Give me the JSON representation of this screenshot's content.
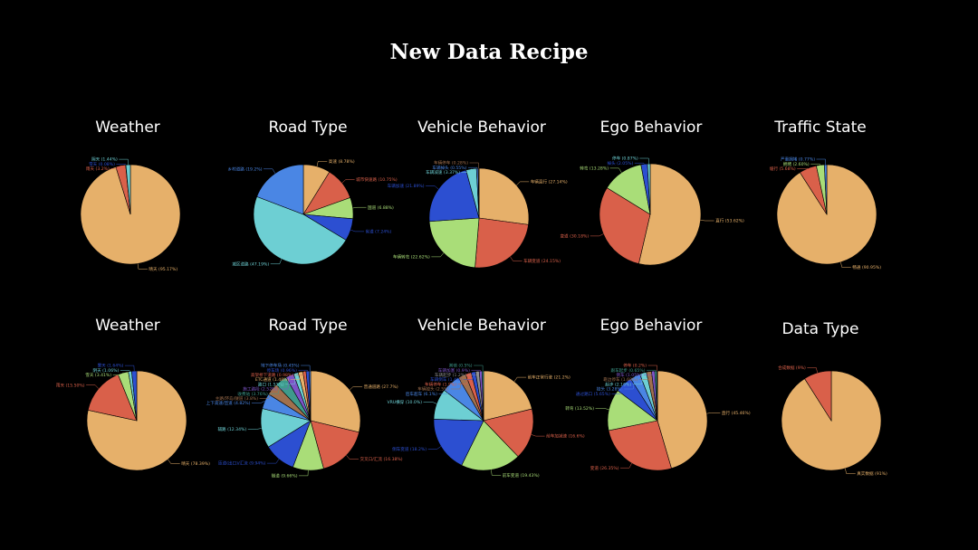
{
  "page": {
    "title": "New Data Recipe"
  },
  "colors": {
    "orange": "#e6b06a",
    "red": "#d9604a",
    "green": "#a9dd78",
    "blue": "#2c4fd1",
    "cyan": "#6dcfd3",
    "skyblue": "#4a86e4",
    "purple": "#7d55c8",
    "brown": "#a0704e",
    "teal": "#3e9b8c",
    "gray": "#8f8f8f"
  },
  "chart_data": [
    {
      "type": "pie",
      "title": "Weather",
      "slices": [
        {
          "label": "晴天 (95.17%)",
          "value": 95.17,
          "color": "#e6b06a"
        },
        {
          "label": "雨天 (3.2%)",
          "value": 3.2,
          "color": "#d9604a"
        },
        {
          "label": "雪天 (0.08%)",
          "value": 0.08,
          "color": "#2c4fd1"
        },
        {
          "label": "阴天 (1.44%)",
          "value": 1.44,
          "color": "#6dcfd3"
        }
      ]
    },
    {
      "type": "pie",
      "title": "Road Type",
      "slices": [
        {
          "label": "高速 (8.78%)",
          "value": 8.78,
          "color": "#e6b06a"
        },
        {
          "label": "城市快速路 (10.75%)",
          "value": 10.75,
          "color": "#d9604a"
        },
        {
          "label": "国道 (6.88%)",
          "value": 6.88,
          "color": "#a9dd78"
        },
        {
          "label": "省道 (7.24%)",
          "value": 7.24,
          "color": "#2c4fd1"
        },
        {
          "label": "城区道路 (47.19%)",
          "value": 47.19,
          "color": "#6dcfd3"
        },
        {
          "label": "乡村道路 (19.2%)",
          "value": 19.2,
          "color": "#4a86e4"
        }
      ]
    },
    {
      "type": "pie",
      "title": "Vehicle Behavior",
      "slices": [
        {
          "label": "车辆直行 (27.14%)",
          "value": 27.14,
          "color": "#e6b06a"
        },
        {
          "label": "车辆变道 (24.15%)",
          "value": 24.15,
          "color": "#d9604a"
        },
        {
          "label": "车辆转弯 (22.62%)",
          "value": 22.62,
          "color": "#a9dd78"
        },
        {
          "label": "车辆加速 (21.89%)",
          "value": 21.89,
          "color": "#2c4fd1"
        },
        {
          "label": "车辆减速 (3.37%)",
          "value": 3.37,
          "color": "#6dcfd3"
        },
        {
          "label": "车辆掉头 (0.55%)",
          "value": 0.55,
          "color": "#4a86e4"
        },
        {
          "label": "车辆停车 (0.28%)",
          "value": 0.28,
          "color": "#a0704e"
        }
      ]
    },
    {
      "type": "pie",
      "title": "Ego Behavior",
      "slices": [
        {
          "label": "直行 (53.62%)",
          "value": 53.62,
          "color": "#e6b06a"
        },
        {
          "label": "变道 (30.18%)",
          "value": 30.18,
          "color": "#d9604a"
        },
        {
          "label": "转弯 (13.28%)",
          "value": 13.28,
          "color": "#a9dd78"
        },
        {
          "label": "掉头 (2.05%)",
          "value": 2.05,
          "color": "#2c4fd1"
        },
        {
          "label": "停车 (0.87%)",
          "value": 0.87,
          "color": "#6dcfd3"
        }
      ]
    },
    {
      "type": "pie",
      "title": "Traffic State",
      "slices": [
        {
          "label": "畅通 (90.95%)",
          "value": 90.95,
          "color": "#e6b06a"
        },
        {
          "label": "缓行 (5.68%)",
          "value": 5.68,
          "color": "#d9604a"
        },
        {
          "label": "拥堵 (2.60%)",
          "value": 2.6,
          "color": "#a9dd78"
        },
        {
          "label": "严重拥堵 (0.77%)",
          "value": 0.77,
          "color": "#4a86e4"
        }
      ]
    },
    {
      "type": "pie",
      "title": "Weather",
      "slices": [
        {
          "label": "晴天 (78.39%)",
          "value": 78.39,
          "color": "#e6b06a"
        },
        {
          "label": "雨天 (15.50%)",
          "value": 15.5,
          "color": "#d9604a"
        },
        {
          "label": "雪天 (3.41%)",
          "value": 3.41,
          "color": "#a9dd78"
        },
        {
          "label": "阴天 (1.06%)",
          "value": 1.06,
          "color": "#6dcfd3"
        },
        {
          "label": "雾天 (1.64%)",
          "value": 1.64,
          "color": "#2c4fd1"
        }
      ]
    },
    {
      "type": "pie",
      "title": "Road Type",
      "slices": [
        {
          "label": "普通道路 (27.7%)",
          "value": 27.7,
          "color": "#e6b06a"
        },
        {
          "label": "交叉口/汇流 (16.38%)",
          "value": 16.38,
          "color": "#d9604a"
        },
        {
          "label": "隧道 (9.66%)",
          "value": 9.66,
          "color": "#a9dd78"
        },
        {
          "label": "匝道(出口)/汇流 (9.94%)",
          "value": 9.94,
          "color": "#2c4fd1"
        },
        {
          "label": "辅路 (12.34%)",
          "value": 12.34,
          "color": "#6dcfd3"
        },
        {
          "label": "上下高速/匝道 (4.82%)",
          "value": 4.82,
          "color": "#4a86e4"
        },
        {
          "label": "主路/环岛/隧道 (3.8%)",
          "value": 3.8,
          "color": "#a0704e"
        },
        {
          "label": "收费站 (3.76%)",
          "value": 3.76,
          "color": "#3e9b8c"
        },
        {
          "label": "施工路段 (2.52%)",
          "value": 2.52,
          "color": "#7d55c8"
        },
        {
          "label": "路口 (1.51%)",
          "value": 1.51,
          "color": "#6dcfd3"
        },
        {
          "label": "ETC通道 (1.48%)",
          "value": 1.48,
          "color": "#e6b06a"
        },
        {
          "label": "高架桥下道路 (0.98%)",
          "value": 0.98,
          "color": "#d9604a"
        },
        {
          "label": "停车场 (0.96%)",
          "value": 0.96,
          "color": "#2c4fd1"
        },
        {
          "label": "地下停车场 (0.45%)",
          "value": 0.45,
          "color": "#4a86e4"
        }
      ]
    },
    {
      "type": "pie",
      "title": "Vehicle Behavior",
      "slices": [
        {
          "label": "前车正常行驶 (21.2%)",
          "value": 21.2,
          "color": "#e6b06a"
        },
        {
          "label": "前车加减速 (16.6%)",
          "value": 16.6,
          "color": "#d9604a"
        },
        {
          "label": "前车变道 (19.43%)",
          "value": 19.43,
          "color": "#a9dd78"
        },
        {
          "label": "侧车变道 (18.2%)",
          "value": 18.2,
          "color": "#2c4fd1"
        },
        {
          "label": "VRU横穿 (10.0%)",
          "value": 10.0,
          "color": "#6dcfd3"
        },
        {
          "label": "后车超车 (6.1%)",
          "value": 6.1,
          "color": "#4a86e4"
        },
        {
          "label": "车辆掉头 (2.5%)",
          "value": 2.5,
          "color": "#a0704e"
        },
        {
          "label": "车辆停车 (1.9%)",
          "value": 1.9,
          "color": "#d9604a"
        },
        {
          "label": "车辆倒车 (1.4%)",
          "value": 1.4,
          "color": "#2c4fd1"
        },
        {
          "label": "车辆起步 (1.2%)",
          "value": 1.2,
          "color": "#8f8f8f"
        },
        {
          "label": "车辆加塞 (0.9%)",
          "value": 0.9,
          "color": "#7d55c8"
        },
        {
          "label": "其他 (0.5%)",
          "value": 0.5,
          "color": "#3e9b8c"
        }
      ]
    },
    {
      "type": "pie",
      "title": "Ego Behavior",
      "slices": [
        {
          "label": "直行 (45.46%)",
          "value": 45.46,
          "color": "#e6b06a"
        },
        {
          "label": "变道 (26.35%)",
          "value": 26.35,
          "color": "#d9604a"
        },
        {
          "label": "转弯 (13.52%)",
          "value": 13.52,
          "color": "#a9dd78"
        },
        {
          "label": "通过路口 (5.65%)",
          "value": 5.65,
          "color": "#2c4fd1"
        },
        {
          "label": "掉头 (3.28%)",
          "value": 3.28,
          "color": "#4a86e4"
        },
        {
          "label": "起步 (2.16%)",
          "value": 2.16,
          "color": "#6dcfd3"
        },
        {
          "label": "靠边停车 (1.68%)",
          "value": 1.68,
          "color": "#a0704e"
        },
        {
          "label": "倒车 (1.05%)",
          "value": 1.05,
          "color": "#7d55c8"
        },
        {
          "label": "跟车起步 (0.65%)",
          "value": 0.65,
          "color": "#3e9b8c"
        },
        {
          "label": "停车 (0.2%)",
          "value": 0.2,
          "color": "#d9604a"
        }
      ]
    },
    {
      "type": "pie",
      "title": "Data Type",
      "slices": [
        {
          "label": "真实数据 (91%)",
          "value": 91,
          "color": "#e6b06a"
        },
        {
          "label": "合成数据 (9%)",
          "value": 9,
          "color": "#d9604a"
        }
      ]
    }
  ]
}
